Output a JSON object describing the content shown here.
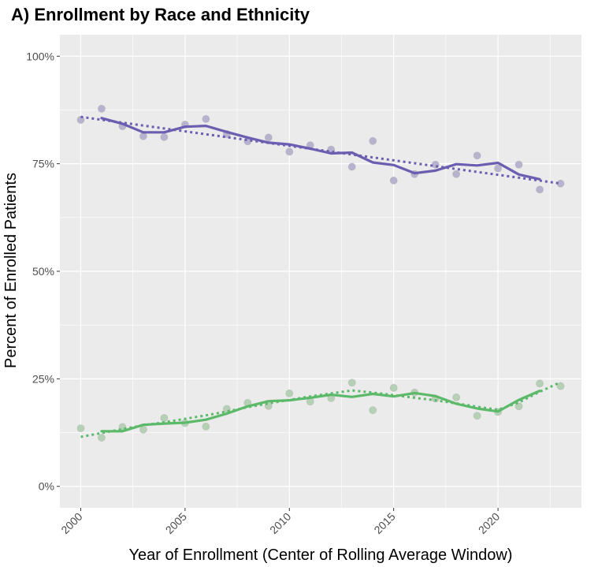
{
  "chart_data": {
    "type": "scatter",
    "title": "A) Enrollment by Race and Ethnicity",
    "xlabel": "Year of Enrollment (Center of Rolling Average Window)",
    "ylabel": "Percent of Enrolled Patients",
    "xlim": [
      1999.0,
      2024.0
    ],
    "ylim": [
      -5,
      105
    ],
    "x_ticks": [
      2000,
      2005,
      2010,
      2015,
      2020
    ],
    "x_tick_labels": [
      "2000",
      "2005",
      "2010",
      "2015",
      "2020"
    ],
    "y_ticks": [
      0,
      25,
      50,
      75,
      100
    ],
    "y_tick_labels": [
      "0%",
      "25%",
      "50%",
      "75%",
      "100%"
    ],
    "grid": true,
    "background": "#ebebeb",
    "series": [
      {
        "color": "#6b5eb0",
        "point_color": "#b4b0cc",
        "x": [
          2000,
          2001,
          2002,
          2003,
          2004,
          2005,
          2006,
          2007,
          2008,
          2009,
          2010,
          2011,
          2012,
          2013,
          2014,
          2015,
          2016,
          2017,
          2018,
          2019,
          2020,
          2021,
          2022,
          2023
        ],
        "points": [
          85.2,
          87.8,
          83.7,
          81.4,
          81.2,
          84.1,
          85.4,
          81.9,
          80.2,
          81.1,
          77.8,
          79.3,
          78.3,
          74.3,
          80.3,
          71.1,
          72.6,
          74.8,
          72.6,
          76.9,
          73.9,
          74.8,
          69.0,
          70.4
        ],
        "rolling_x": [
          2001,
          2002,
          2003,
          2004,
          2005,
          2006,
          2007,
          2008,
          2009,
          2010,
          2011,
          2012,
          2013,
          2014,
          2015,
          2016,
          2017,
          2018,
          2019,
          2020,
          2021,
          2022
        ],
        "rolling": [
          85.6,
          84.3,
          82.3,
          82.3,
          83.6,
          83.8,
          82.4,
          81.1,
          79.9,
          79.5,
          78.5,
          77.4,
          77.6,
          75.3,
          74.7,
          72.8,
          73.4,
          74.9,
          74.6,
          75.2,
          72.5,
          71.4
        ],
        "trend": [
          85.9,
          84.4
        ]
      },
      {
        "color": "#5cb96a",
        "point_color": "#b2cfb2",
        "x": [
          2000,
          2001,
          2002,
          2003,
          2004,
          2005,
          2006,
          2007,
          2008,
          2009,
          2010,
          2011,
          2012,
          2013,
          2014,
          2015,
          2016,
          2017,
          2018,
          2019,
          2020,
          2021,
          2022,
          2023
        ],
        "points": [
          13.5,
          11.3,
          13.8,
          13.2,
          15.9,
          14.7,
          13.9,
          18.0,
          19.4,
          18.7,
          21.6,
          19.7,
          20.5,
          24.1,
          17.7,
          22.9,
          21.8,
          20.4,
          20.7,
          16.4,
          17.3,
          18.6,
          23.9,
          23.3
        ],
        "rolling_x": [
          2001,
          2002,
          2003,
          2004,
          2005,
          2006,
          2007,
          2008,
          2009,
          2010,
          2011,
          2012,
          2013,
          2014,
          2015,
          2016,
          2017,
          2018,
          2019,
          2020,
          2021,
          2022
        ],
        "rolling": [
          12.8,
          12.8,
          14.3,
          14.6,
          14.8,
          15.5,
          16.9,
          18.6,
          19.8,
          20.0,
          20.6,
          21.3,
          20.8,
          21.5,
          20.9,
          21.7,
          21.0,
          19.2,
          18.1,
          17.4,
          20.1,
          22.2
        ],
        "trend_x": [
          2000,
          2001,
          2002,
          2003,
          2004,
          2005,
          2006,
          2007,
          2008,
          2009,
          2010,
          2011,
          2012,
          2013,
          2014,
          2015,
          2016,
          2017,
          2018,
          2019,
          2020,
          2021,
          2022,
          2023
        ],
        "trend_values": [
          11.5,
          12.4,
          13.3,
          14.2,
          14.9,
          15.7,
          16.5,
          17.4,
          18.4,
          19.3,
          20.1,
          20.9,
          21.6,
          22.3,
          21.8,
          21.2,
          20.6,
          20.0,
          19.3,
          18.5,
          17.8,
          19.5,
          22.0,
          24.2
        ]
      }
    ]
  }
}
